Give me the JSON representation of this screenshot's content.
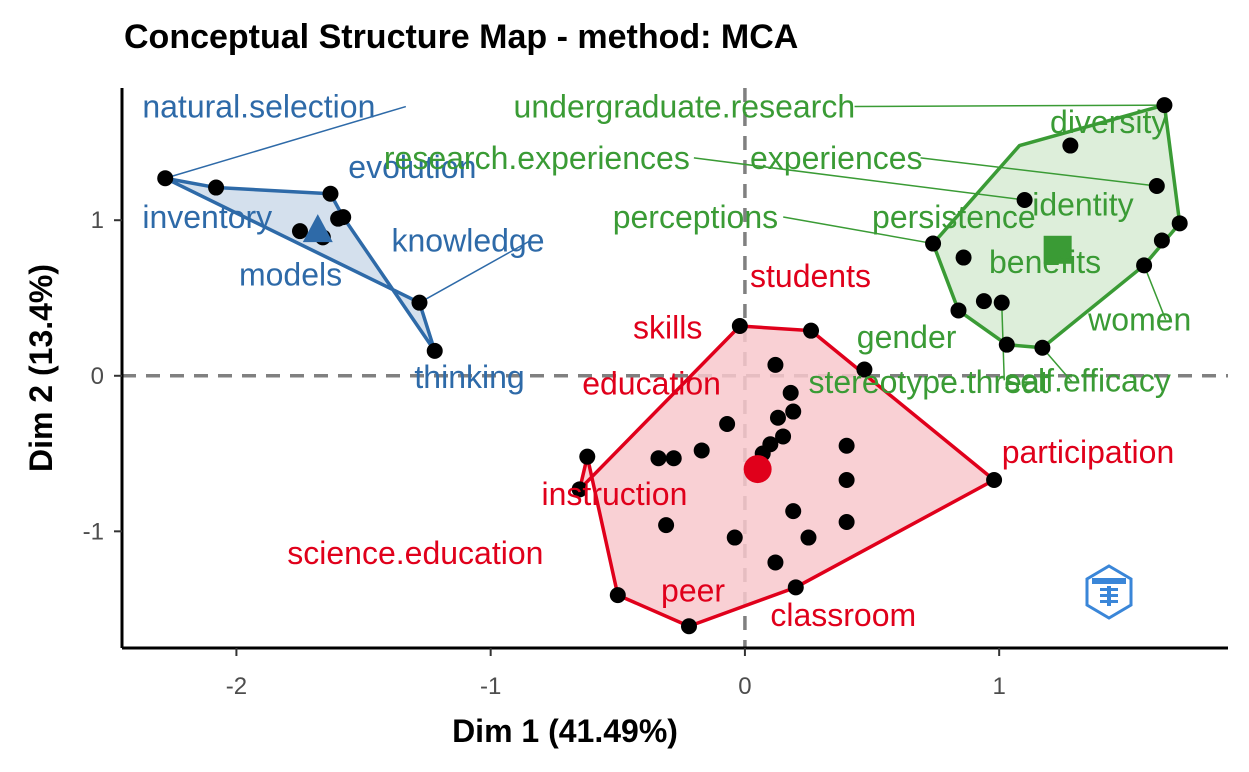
{
  "chart_data": {
    "type": "scatter",
    "title": "Conceptual Structure Map - method: MCA",
    "xlabel": "Dim 1 (41.49%)",
    "ylabel": "Dim 2 (13.4%)",
    "xlim": [
      -2.45,
      1.9
    ],
    "ylim": [
      -1.75,
      1.85
    ],
    "xticks": [
      -2,
      -1,
      0,
      1
    ],
    "xtick_labels": [
      "-2",
      "-1",
      "0",
      "1"
    ],
    "yticks": [
      -1,
      0,
      1
    ],
    "ytick_labels": [
      "-1",
      "0",
      "1"
    ],
    "reference_lines": {
      "x": 0,
      "y": 0,
      "style": "dashed"
    },
    "clusters": [
      {
        "color": "#2e6aa8",
        "fill": "#ccdaea",
        "centroid": {
          "x": -1.68,
          "y": 0.93,
          "shape": "triangle"
        },
        "hull": [
          [
            -2.28,
            1.27
          ],
          [
            -2.08,
            1.21
          ],
          [
            -1.63,
            1.17
          ],
          [
            -1.58,
            1.02
          ],
          [
            -1.22,
            0.16
          ],
          [
            -1.28,
            0.47
          ]
        ],
        "points": [
          {
            "x": -2.28,
            "y": 1.27
          },
          {
            "x": -2.08,
            "y": 1.21
          },
          {
            "x": -1.63,
            "y": 1.17
          },
          {
            "x": -1.58,
            "y": 1.02
          },
          {
            "x": -1.6,
            "y": 1.01
          },
          {
            "x": -1.75,
            "y": 0.93
          },
          {
            "x": -1.66,
            "y": 0.89
          },
          {
            "x": -1.28,
            "y": 0.47
          },
          {
            "x": -1.22,
            "y": 0.16
          }
        ],
        "labels": [
          {
            "text": "natural.selection",
            "x": -2.37,
            "y": 1.66,
            "px": -2.28,
            "py": 1.27
          },
          {
            "text": "evolution",
            "x": -1.56,
            "y": 1.27
          },
          {
            "text": "inventory",
            "x": -2.37,
            "y": 0.95
          },
          {
            "text": "knowledge",
            "x": -1.39,
            "y": 0.8,
            "px": -1.28,
            "py": 0.47
          },
          {
            "text": "models",
            "x": -1.99,
            "y": 0.58
          },
          {
            "text": "thinking",
            "x": -1.3,
            "y": -0.08
          }
        ]
      },
      {
        "color": "#e0001b",
        "fill": "#f8c8cc",
        "centroid": {
          "x": 0.05,
          "y": -0.6,
          "shape": "circle"
        },
        "hull": [
          [
            -0.02,
            0.32
          ],
          [
            0.26,
            0.29
          ],
          [
            0.98,
            -0.67
          ],
          [
            0.2,
            -1.36
          ],
          [
            -0.22,
            -1.61
          ],
          [
            -0.5,
            -1.41
          ],
          [
            -0.62,
            -0.52
          ],
          [
            -0.65,
            -0.73
          ]
        ],
        "points": [
          {
            "x": -0.02,
            "y": 0.32
          },
          {
            "x": 0.26,
            "y": 0.29
          },
          {
            "x": 0.47,
            "y": 0.04
          },
          {
            "x": 0.12,
            "y": 0.07
          },
          {
            "x": 0.18,
            "y": -0.11
          },
          {
            "x": 0.19,
            "y": -0.23
          },
          {
            "x": 0.13,
            "y": -0.27
          },
          {
            "x": 0.15,
            "y": -0.39
          },
          {
            "x": 0.1,
            "y": -0.44
          },
          {
            "x": 0.07,
            "y": -0.5
          },
          {
            "x": -0.07,
            "y": -0.31
          },
          {
            "x": -0.17,
            "y": -0.48
          },
          {
            "x": -0.28,
            "y": -0.53
          },
          {
            "x": -0.34,
            "y": -0.53
          },
          {
            "x": -0.62,
            "y": -0.52
          },
          {
            "x": -0.65,
            "y": -0.73
          },
          {
            "x": -0.31,
            "y": -0.96
          },
          {
            "x": -0.04,
            "y": -1.04
          },
          {
            "x": 0.12,
            "y": -1.2
          },
          {
            "x": 0.19,
            "y": -0.87
          },
          {
            "x": 0.25,
            "y": -1.04
          },
          {
            "x": 0.4,
            "y": -0.45
          },
          {
            "x": 0.4,
            "y": -0.67
          },
          {
            "x": 0.4,
            "y": -0.94
          },
          {
            "x": 0.2,
            "y": -1.36
          },
          {
            "x": -0.22,
            "y": -1.61
          },
          {
            "x": -0.5,
            "y": -1.41
          },
          {
            "x": 0.98,
            "y": -0.67
          }
        ],
        "labels": [
          {
            "text": "students",
            "x": 0.02,
            "y": 0.57
          },
          {
            "text": "skills",
            "x": -0.44,
            "y": 0.24
          },
          {
            "text": "education",
            "x": -0.64,
            "y": -0.12
          },
          {
            "text": "participation",
            "x": 1.01,
            "y": -0.56
          },
          {
            "text": "instruction",
            "x": -0.8,
            "y": -0.83
          },
          {
            "text": "science.education",
            "x": -1.8,
            "y": -1.21
          },
          {
            "text": "peer",
            "x": -0.33,
            "y": -1.45
          },
          {
            "text": "classroom",
            "x": 0.1,
            "y": -1.61
          }
        ]
      },
      {
        "color": "#3a9b35",
        "fill": "#d7ebd3",
        "centroid": {
          "x": 1.23,
          "y": 0.81,
          "shape": "square"
        },
        "hull": [
          [
            1.65,
            1.74
          ],
          [
            1.71,
            0.98
          ],
          [
            1.57,
            0.71
          ],
          [
            1.17,
            0.18
          ],
          [
            1.03,
            0.2
          ],
          [
            0.84,
            0.42
          ],
          [
            0.74,
            0.85
          ],
          [
            1.08,
            1.48
          ]
        ],
        "points": [
          {
            "x": 1.65,
            "y": 1.74
          },
          {
            "x": 1.28,
            "y": 1.48
          },
          {
            "x": 1.62,
            "y": 1.22
          },
          {
            "x": 1.1,
            "y": 1.13
          },
          {
            "x": 1.71,
            "y": 0.98
          },
          {
            "x": 1.64,
            "y": 0.87
          },
          {
            "x": 0.74,
            "y": 0.85
          },
          {
            "x": 0.86,
            "y": 0.76
          },
          {
            "x": 1.57,
            "y": 0.71
          },
          {
            "x": 0.94,
            "y": 0.48
          },
          {
            "x": 1.01,
            "y": 0.47
          },
          {
            "x": 0.84,
            "y": 0.42
          },
          {
            "x": 1.03,
            "y": 0.2
          },
          {
            "x": 1.17,
            "y": 0.18
          }
        ],
        "labels": [
          {
            "text": "undergraduate.research",
            "x": -0.91,
            "y": 1.66,
            "px": 1.65,
            "py": 1.74
          },
          {
            "text": "diversity",
            "x": 1.2,
            "y": 1.56
          },
          {
            "text": "research.experiences",
            "x": -1.42,
            "y": 1.33,
            "px": 1.1,
            "py": 1.13
          },
          {
            "text": "experiences",
            "x": 0.02,
            "y": 1.33,
            "px": 1.62,
            "py": 1.22
          },
          {
            "text": "identity",
            "x": 1.13,
            "y": 1.03
          },
          {
            "text": "perceptions",
            "x": -0.52,
            "y": 0.95,
            "px": 0.74,
            "py": 0.85
          },
          {
            "text": "persistence",
            "x": 0.5,
            "y": 0.95
          },
          {
            "text": "benefits",
            "x": 0.96,
            "y": 0.66
          },
          {
            "text": "women",
            "x": 1.35,
            "y": 0.29,
            "px": 1.57,
            "py": 0.71
          },
          {
            "text": "gender",
            "x": 0.44,
            "y": 0.18
          },
          {
            "text": "self.efficacy",
            "x": 1.02,
            "y": -0.1,
            "px": 1.01,
            "py": 0.47
          },
          {
            "text": "stereotype.threat",
            "x": 0.25,
            "y": -0.11,
            "px": 1.17,
            "py": 0.18
          }
        ]
      }
    ]
  }
}
